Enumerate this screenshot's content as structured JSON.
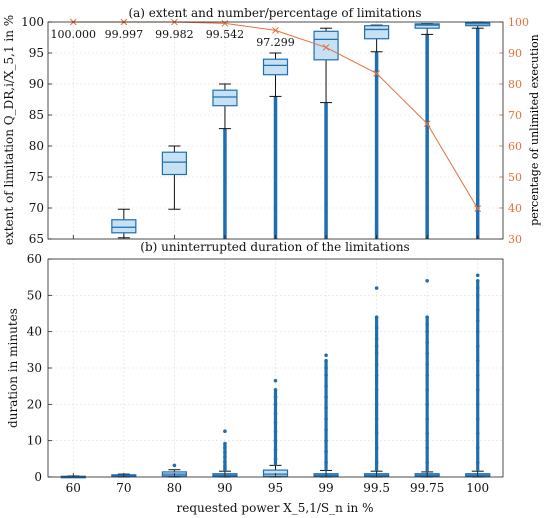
{
  "colors": {
    "box_stroke": "#1f6fb0",
    "box_fill": "#c6e0f4",
    "whisker": "#111111",
    "outlier": "#1f6fb0",
    "series_line": "#e3703c",
    "grid": "#d4d4d4"
  },
  "chart_data": [
    {
      "type": "box",
      "title": "(a) extent and number/percentage of limitations",
      "xlabel": "",
      "ylabel": "extent of limitation Q_DR,i/X_5,1 in %",
      "y2label": "percentage of unlimited execution",
      "categories": [
        "60",
        "70",
        "80",
        "90",
        "95",
        "99",
        "99.5",
        "99.75",
        "100"
      ],
      "ylim": [
        65,
        100
      ],
      "yticks": [
        65,
        70,
        75,
        80,
        85,
        90,
        95,
        100
      ],
      "y2lim": [
        30,
        100
      ],
      "y2ticks": [
        30,
        40,
        50,
        60,
        70,
        80,
        90,
        100
      ],
      "grid": true,
      "boxes": [
        {
          "category": "60",
          "empty": true
        },
        {
          "category": "70",
          "whislo": 65.2,
          "q1": 66.0,
          "med": 66.9,
          "q3": 68.1,
          "whishi": 69.8,
          "outlier_range": null
        },
        {
          "category": "80",
          "whislo": 69.8,
          "q1": 75.4,
          "med": 77.4,
          "q3": 79.0,
          "whishi": 80.0,
          "outlier_range": null
        },
        {
          "category": "90",
          "whislo": 82.8,
          "q1": 86.5,
          "med": 87.9,
          "q3": 89.0,
          "whishi": 90.0,
          "outlier_range": [
            65,
            82.8
          ]
        },
        {
          "category": "95",
          "whislo": 88.0,
          "q1": 91.5,
          "med": 93.0,
          "q3": 94.0,
          "whishi": 95.0,
          "outlier_range": [
            65,
            88.0
          ]
        },
        {
          "category": "99",
          "whislo": 87.0,
          "q1": 93.9,
          "med": 97.2,
          "q3": 98.5,
          "whishi": 99.0,
          "outlier_range": [
            65,
            87.0
          ]
        },
        {
          "category": "99.5",
          "whislo": 95.2,
          "q1": 97.3,
          "med": 98.8,
          "q3": 99.4,
          "whishi": 99.5,
          "outlier_range": [
            65,
            95.2
          ]
        },
        {
          "category": "99.75",
          "whislo": 98.0,
          "q1": 99.0,
          "med": 99.5,
          "q3": 99.7,
          "whishi": 99.75,
          "outlier_range": [
            65,
            98.0
          ]
        },
        {
          "category": "100",
          "whislo": 99.0,
          "q1": 99.4,
          "med": 99.7,
          "q3": 99.9,
          "whishi": 100.0,
          "outlier_range": [
            65,
            99.0
          ]
        }
      ],
      "series": [
        {
          "axis": "right",
          "values": [
            100.0,
            99.997,
            99.982,
            99.542,
            97.299,
            91.8,
            83.4,
            67.2,
            39.8
          ]
        }
      ],
      "data_labels": [
        "100.000",
        "99.997",
        "99.982",
        "99.542",
        "97.299"
      ]
    },
    {
      "type": "box",
      "title": "(b) uninterrupted duration of the limitations",
      "xlabel": "requested power X_5,1/S_n in %",
      "ylabel": "duration in minutes",
      "categories": [
        "60",
        "70",
        "80",
        "90",
        "95",
        "99",
        "99.5",
        "99.75",
        "100"
      ],
      "ylim": [
        0,
        60
      ],
      "yticks": [
        0,
        10,
        20,
        30,
        40,
        50,
        60
      ],
      "grid": true,
      "boxes": [
        {
          "category": "60",
          "whislo": 0.0,
          "q1": 0.0,
          "med": 0.1,
          "q3": 0.2,
          "whishi": 0.3,
          "outliers": []
        },
        {
          "category": "70",
          "whislo": 0.0,
          "q1": 0.2,
          "med": 0.4,
          "q3": 0.6,
          "whishi": 0.8,
          "outliers": []
        },
        {
          "category": "80",
          "whislo": 0.0,
          "q1": 0.3,
          "med": 0.8,
          "q3": 1.4,
          "whishi": 2.0,
          "outliers": [
            3.2
          ]
        },
        {
          "category": "90",
          "whislo": 0.0,
          "q1": 0.2,
          "med": 0.5,
          "q3": 0.9,
          "whishi": 1.6,
          "outliers": [
            2.2,
            3.0,
            4.1,
            5.5,
            6.8,
            8.0,
            9.2,
            12.6
          ]
        },
        {
          "category": "95",
          "whislo": 0.0,
          "q1": 0.2,
          "med": 0.8,
          "q3": 1.9,
          "whishi": 3.2,
          "outliers": [
            5.0,
            7.5,
            10.0,
            12.5,
            15.0,
            17.5,
            20.0,
            22.0,
            24.0,
            26.5
          ]
        },
        {
          "category": "99",
          "whislo": 0.0,
          "q1": 0.2,
          "med": 0.5,
          "q3": 0.9,
          "whishi": 1.8,
          "outliers": [
            4.0,
            7.0,
            10.0,
            13.0,
            16.0,
            19.0,
            22.0,
            25.0,
            28.0,
            30.0,
            32.0,
            33.5
          ]
        },
        {
          "category": "99.5",
          "whislo": 0.0,
          "q1": 0.2,
          "med": 0.5,
          "q3": 0.9,
          "whishi": 1.6,
          "outliers": [
            4.0,
            8.0,
            12.0,
            16.0,
            20.0,
            24.0,
            28.0,
            31.0,
            34.0,
            36.0,
            38.0,
            41.0,
            44.0,
            52.0
          ]
        },
        {
          "category": "99.75",
          "whislo": 0.0,
          "q1": 0.2,
          "med": 0.5,
          "q3": 0.9,
          "whishi": 1.4,
          "outliers": [
            4.0,
            8.0,
            12.0,
            16.0,
            20.0,
            24.0,
            28.0,
            31.0,
            34.0,
            37.0,
            40.0,
            42.0,
            44.0,
            54.0
          ]
        },
        {
          "category": "100",
          "whislo": 0.0,
          "q1": 0.2,
          "med": 0.5,
          "q3": 0.9,
          "whishi": 1.6,
          "outliers": [
            4.0,
            8.0,
            12.0,
            16.0,
            20.0,
            24.0,
            28.0,
            32.0,
            36.0,
            40.0,
            43.0,
            46.0,
            50.0,
            52.0,
            54.0,
            55.5
          ]
        }
      ]
    }
  ]
}
